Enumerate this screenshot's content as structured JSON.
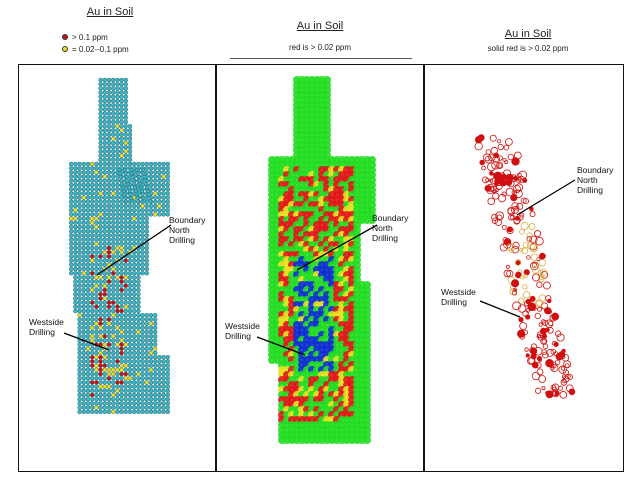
{
  "panels": [
    {
      "title": "Au in Soil",
      "legend": [
        {
          "text": "> 0.1 ppm",
          "color": "#d01010"
        },
        {
          "text": "= 0.02--0.1 ppm",
          "color": "#e8e020"
        }
      ],
      "labels": {
        "boundary": [
          "Boundary",
          "North",
          "Drilling"
        ],
        "westside": [
          "Westside",
          "Drilling"
        ]
      }
    },
    {
      "title": "Au in Soil",
      "subtitle": "red is > 0.02 ppm",
      "labels": {
        "boundary": [
          "Boundary",
          "North",
          "Drilling"
        ],
        "westside": [
          "Westside",
          "Drilling"
        ]
      }
    },
    {
      "title": "Au in Soil",
      "subtitle": "solid red is > 0.02 ppm",
      "labels": {
        "boundary": [
          "Boundary",
          "North",
          "Drilling"
        ],
        "westside": [
          "Westside",
          "Drilling"
        ]
      }
    }
  ],
  "colors": {
    "background_dots": "#3bb8c8",
    "high": "#d01010",
    "medium": "#e8e020",
    "heat_green": "#22dd22",
    "heat_yellow": "#e8e020",
    "heat_red": "#e01818",
    "heat_blue": "#1030d0"
  }
}
